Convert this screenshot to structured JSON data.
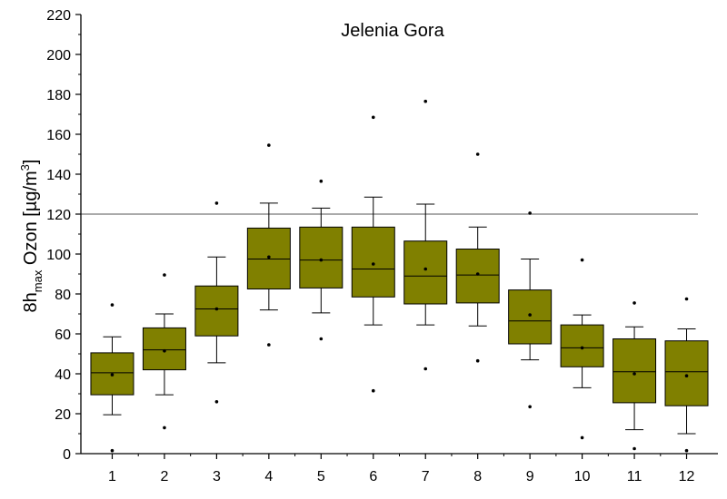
{
  "chart_data": {
    "type": "box",
    "title": "Jelenia Gora",
    "ylabel": {
      "prefix": "8h",
      "subscript": "max",
      "main": " Ozon [µg/m",
      "superscript": "3",
      "suffix": "]"
    },
    "xlabel": "",
    "ylim": [
      0,
      220
    ],
    "yticks": [
      0,
      20,
      40,
      60,
      80,
      100,
      120,
      140,
      160,
      180,
      200,
      220
    ],
    "reference_line": 120,
    "colors": {
      "box_fill": "#808000",
      "stroke": "#000000"
    },
    "categories": [
      "1",
      "2",
      "3",
      "4",
      "5",
      "6",
      "7",
      "8",
      "9",
      "10",
      "11",
      "12"
    ],
    "boxes": [
      {
        "min": 1.5,
        "whisker_low": 19.5,
        "q1": 29.5,
        "median": 40.5,
        "mean": 39.5,
        "q3": 50.5,
        "whisker_high": 58.5,
        "max": 74.5
      },
      {
        "min": 13,
        "whisker_low": 29.5,
        "q1": 42,
        "median": 52,
        "mean": 51.5,
        "q3": 63,
        "whisker_high": 70,
        "max": 89.5
      },
      {
        "min": 26,
        "whisker_low": 45.5,
        "q1": 59,
        "median": 72.5,
        "mean": 72.5,
        "q3": 84,
        "whisker_high": 98.5,
        "max": 125.5
      },
      {
        "min": 54.5,
        "whisker_low": 72,
        "q1": 82.5,
        "median": 97.5,
        "mean": 98.5,
        "q3": 113,
        "whisker_high": 125.5,
        "max": 154.5
      },
      {
        "min": 57.5,
        "whisker_low": 70.5,
        "q1": 83,
        "median": 97,
        "mean": 97,
        "q3": 113.5,
        "whisker_high": 123,
        "max": 136.5
      },
      {
        "min": 31.5,
        "whisker_low": 64.5,
        "q1": 78.5,
        "median": 92.5,
        "mean": 95,
        "q3": 113.5,
        "whisker_high": 128.5,
        "max": 168.5
      },
      {
        "min": 42.5,
        "whisker_low": 64.5,
        "q1": 75,
        "median": 89,
        "mean": 92.5,
        "q3": 106.5,
        "whisker_high": 125,
        "max": 176.5
      },
      {
        "min": 46.5,
        "whisker_low": 64,
        "q1": 75.5,
        "median": 89.5,
        "mean": 90,
        "q3": 102.5,
        "whisker_high": 113.5,
        "max": 150
      },
      {
        "min": 23.5,
        "whisker_low": 47,
        "q1": 55,
        "median": 66.5,
        "mean": 69.5,
        "q3": 82,
        "whisker_high": 97.5,
        "max": 120.5
      },
      {
        "min": 8,
        "whisker_low": 33,
        "q1": 43.5,
        "median": 53,
        "mean": 53,
        "q3": 64.5,
        "whisker_high": 69.5,
        "max": 97
      },
      {
        "min": 2.5,
        "whisker_low": 12,
        "q1": 25.5,
        "median": 41,
        "mean": 40,
        "q3": 57.5,
        "whisker_high": 63.5,
        "max": 75.5
      },
      {
        "min": 1.5,
        "whisker_low": 10,
        "q1": 24,
        "median": 41,
        "mean": 39,
        "q3": 56.5,
        "whisker_high": 62.5,
        "max": 77.5
      }
    ]
  }
}
